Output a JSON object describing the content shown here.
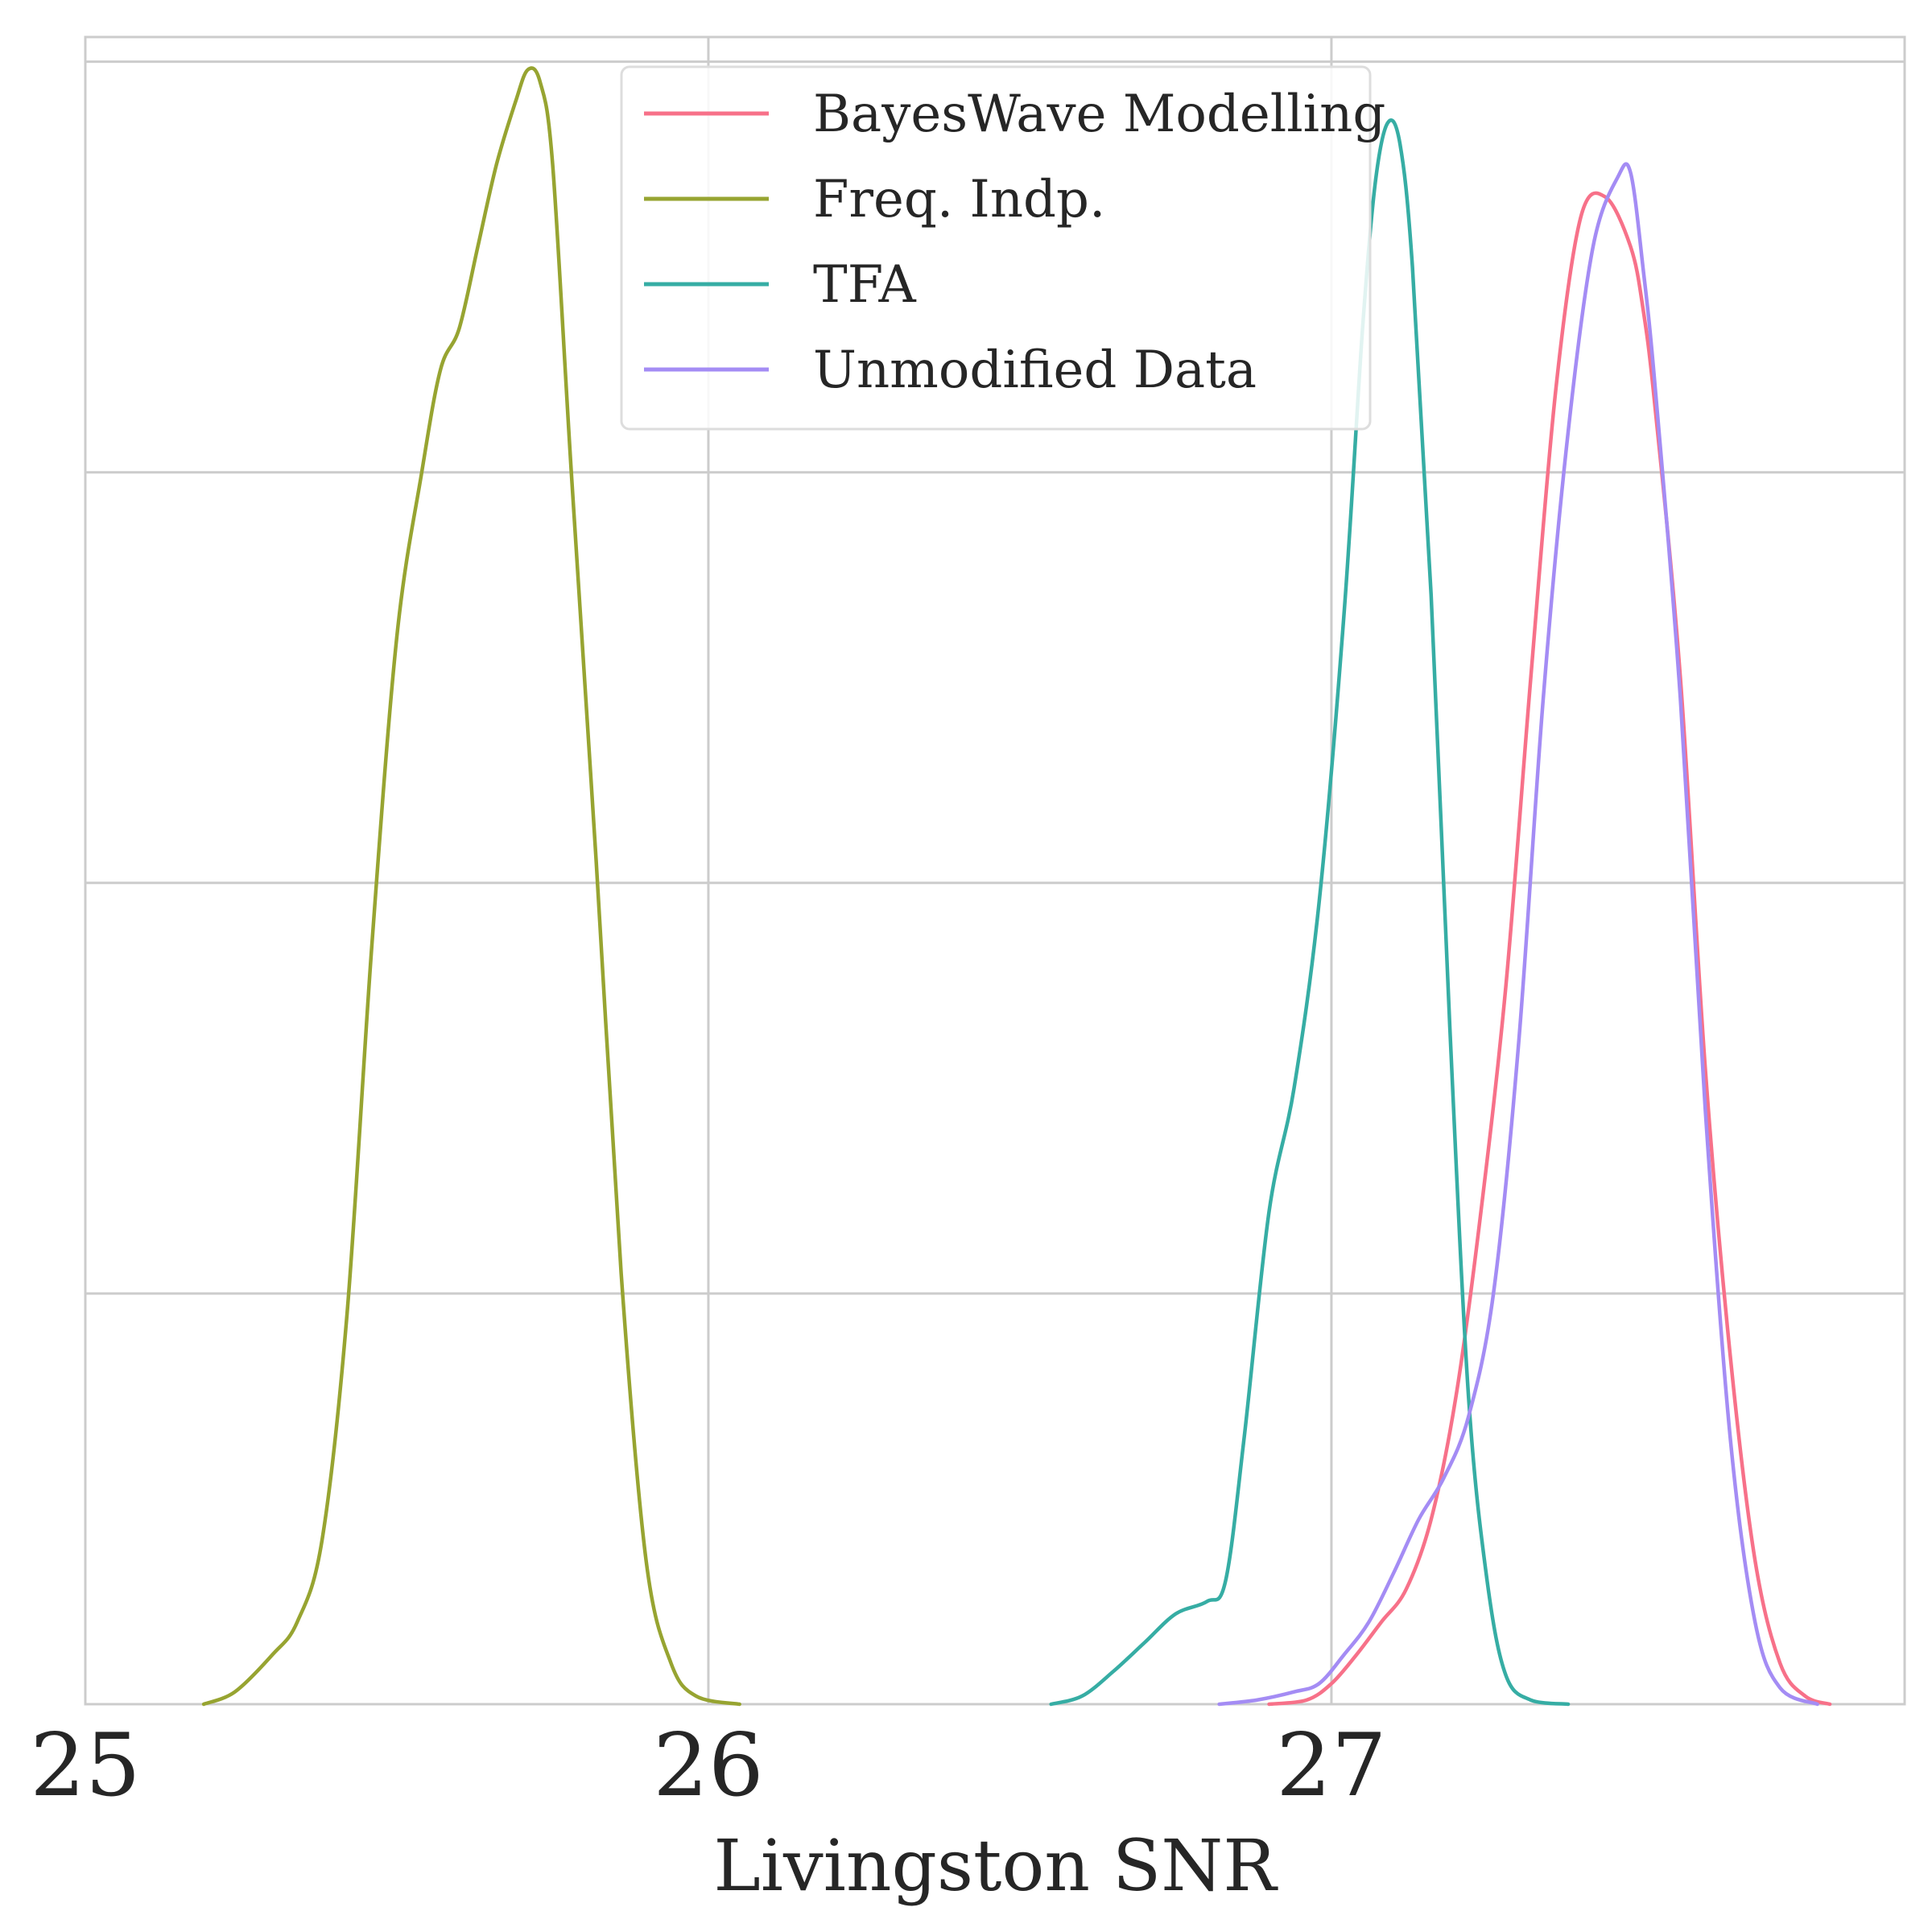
{
  "chart_data": {
    "type": "line",
    "title": "",
    "xlabel": "Livingston SNR",
    "ylabel": "",
    "xlim": [
      25,
      27.92
    ],
    "ylim": [
      0,
      4.06
    ],
    "x_ticks": [
      "25",
      "26",
      "27"
    ],
    "x_tick_values": [
      25,
      26,
      27
    ],
    "y_gridlines": [
      0,
      1,
      2,
      3,
      4
    ],
    "grid": true,
    "legend_position": "upper center",
    "series": [
      {
        "name": "BayesWave Modelling",
        "color": "#f77189",
        "x": [
          26.9,
          26.96,
          27.0,
          27.04,
          27.08,
          27.12,
          27.16,
          27.2,
          27.24,
          27.28,
          27.32,
          27.36,
          27.4,
          27.44,
          27.48,
          27.5,
          27.52,
          27.56,
          27.6,
          27.64,
          27.68,
          27.72,
          27.76,
          27.8
        ],
        "y": [
          0.0,
          0.01,
          0.05,
          0.12,
          0.2,
          0.28,
          0.45,
          0.75,
          1.2,
          1.75,
          2.5,
          3.2,
          3.62,
          3.67,
          3.55,
          3.4,
          3.15,
          2.5,
          1.55,
          0.85,
          0.35,
          0.1,
          0.02,
          0.0
        ]
      },
      {
        "name": "Freq. Indp.",
        "color": "#97a431",
        "x": [
          25.19,
          25.24,
          25.3,
          25.34,
          25.38,
          25.42,
          25.46,
          25.5,
          25.54,
          25.57,
          25.6,
          25.63,
          25.66,
          25.69,
          25.71,
          25.73,
          25.75,
          25.78,
          25.82,
          25.86,
          25.9,
          25.94,
          25.98,
          26.05
        ],
        "y": [
          0.0,
          0.03,
          0.12,
          0.2,
          0.4,
          0.95,
          1.85,
          2.6,
          3.0,
          3.25,
          3.35,
          3.55,
          3.75,
          3.9,
          3.98,
          3.95,
          3.75,
          3.0,
          2.05,
          1.05,
          0.35,
          0.1,
          0.02,
          0.0
        ]
      },
      {
        "name": "TFA",
        "color": "#36ada4",
        "x": [
          26.55,
          26.6,
          26.65,
          26.7,
          26.75,
          26.8,
          26.83,
          26.86,
          26.9,
          26.94,
          26.98,
          27.02,
          27.05,
          27.07,
          27.09,
          27.11,
          27.13,
          27.16,
          27.19,
          27.22,
          27.25,
          27.28,
          27.32,
          27.38
        ],
        "y": [
          0.0,
          0.02,
          0.08,
          0.15,
          0.22,
          0.25,
          0.3,
          0.65,
          1.2,
          1.5,
          1.95,
          2.65,
          3.35,
          3.7,
          3.85,
          3.8,
          3.5,
          2.7,
          1.65,
          0.75,
          0.3,
          0.07,
          0.01,
          0.0
        ]
      },
      {
        "name": "Unmodified Data",
        "color": "#a48cf4",
        "x": [
          26.82,
          26.88,
          26.94,
          26.98,
          27.02,
          27.06,
          27.1,
          27.14,
          27.18,
          27.22,
          27.26,
          27.3,
          27.34,
          27.38,
          27.42,
          27.46,
          27.48,
          27.5,
          27.52,
          27.56,
          27.6,
          27.64,
          27.68,
          27.72,
          27.78
        ],
        "y": [
          0.0,
          0.01,
          0.03,
          0.05,
          0.12,
          0.2,
          0.32,
          0.45,
          0.55,
          0.7,
          1.0,
          1.6,
          2.45,
          3.1,
          3.55,
          3.72,
          3.73,
          3.5,
          3.2,
          2.45,
          1.45,
          0.65,
          0.2,
          0.04,
          0.0
        ]
      }
    ]
  }
}
